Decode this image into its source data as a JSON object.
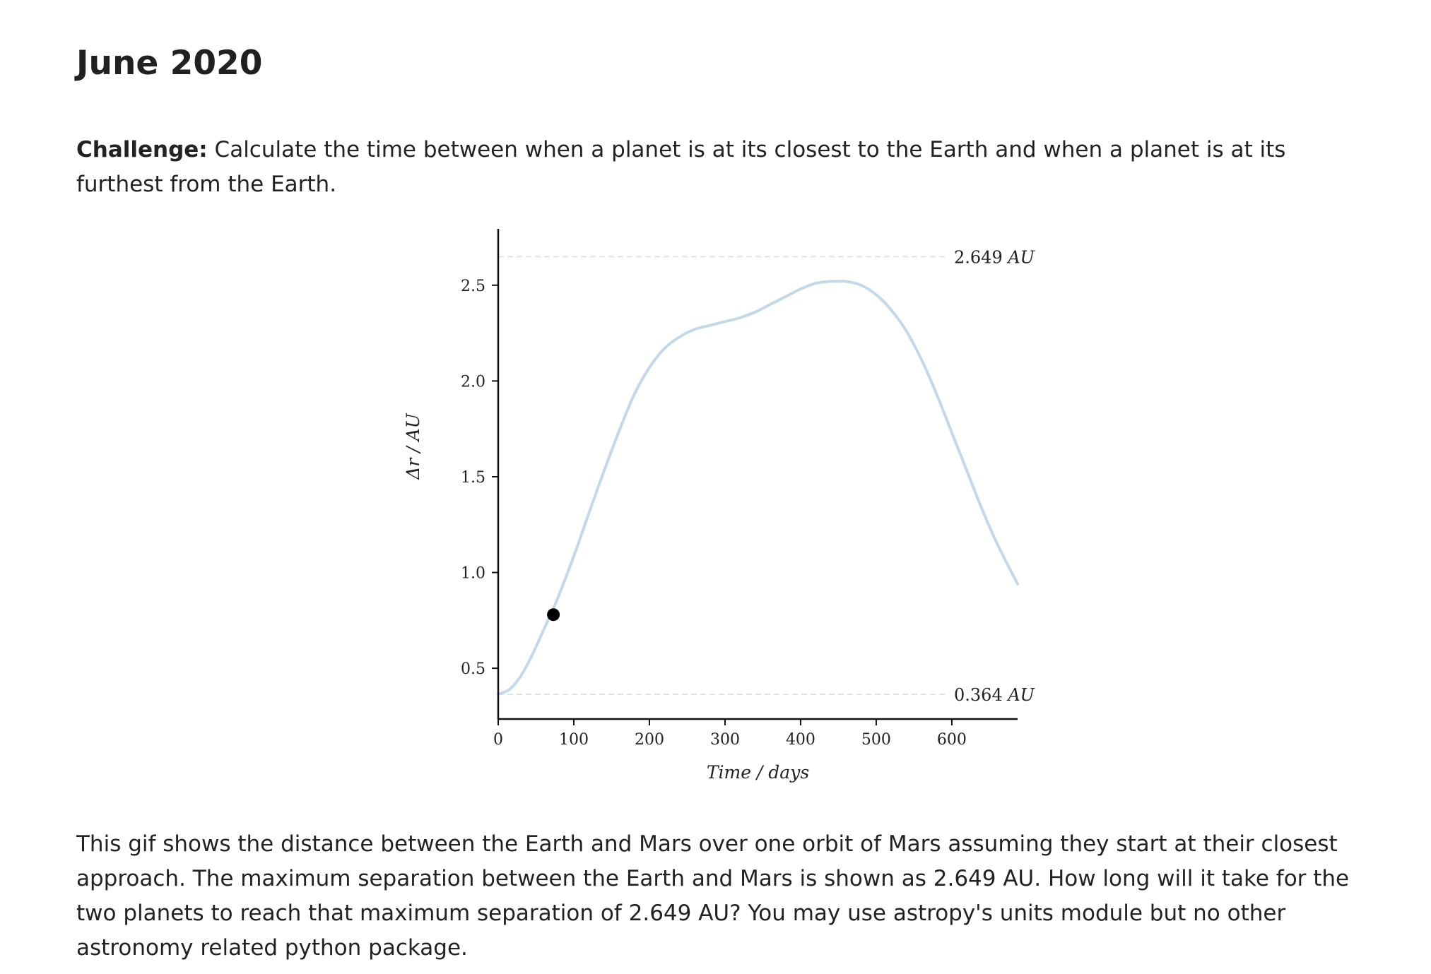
{
  "title": "June 2020",
  "challenge": {
    "label": "Challenge:",
    "text": " Calculate the time between when a planet is at its closest to the Earth and when a planet is at its furthest from the Earth."
  },
  "description": "This gif shows the distance between the Earth and Mars over one orbit of Mars assuming they start at their closest approach. The maximum separation between the Earth and Mars is shown as 2.649 AU. How long will it take for the two planets to reach that maximum separation of 2.649 AU? You may use astropy's units module but no other astronomy related python package.",
  "chart_data": {
    "type": "line",
    "title": "",
    "xlabel": "Time / days",
    "ylabel": "Δr / AU",
    "xlim": [
      0,
      687
    ],
    "ylim": [
      0.235,
      2.75
    ],
    "xticks": [
      0,
      100,
      200,
      300,
      400,
      500,
      600
    ],
    "xtick_labels": [
      "0",
      "100",
      "200",
      "300",
      "400",
      "500",
      "600"
    ],
    "yticks": [
      0.5,
      1.0,
      1.5,
      2.0,
      2.5
    ],
    "ytick_labels": [
      "0.5",
      "1.0",
      "1.5",
      "2.0",
      "2.5"
    ],
    "grid": false,
    "series": [
      {
        "color": "#c3d9ea",
        "x": [
          0,
          15,
          30,
          45,
          60,
          75,
          90,
          105,
          120,
          140,
          160,
          180,
          200,
          220,
          240,
          260,
          280,
          300,
          320,
          340,
          360,
          380,
          400,
          420,
          440,
          450,
          460,
          480,
          500,
          520,
          540,
          560,
          580,
          600,
          620,
          640,
          660,
          687
        ],
        "y": [
          0.364,
          0.39,
          0.46,
          0.57,
          0.7,
          0.83,
          0.98,
          1.14,
          1.31,
          1.53,
          1.74,
          1.93,
          2.07,
          2.17,
          2.23,
          2.27,
          2.29,
          2.31,
          2.33,
          2.36,
          2.4,
          2.44,
          2.48,
          2.51,
          2.52,
          2.52,
          2.52,
          2.5,
          2.45,
          2.37,
          2.26,
          2.11,
          1.93,
          1.73,
          1.53,
          1.33,
          1.15,
          0.94
        ]
      }
    ],
    "reference_lines": [
      {
        "y": 2.649,
        "label": "2.649",
        "unit": "AU"
      },
      {
        "y": 0.364,
        "label": "0.364",
        "unit": "AU"
      }
    ],
    "marker": {
      "x": 73,
      "y": 0.78,
      "color": "#000000"
    }
  }
}
